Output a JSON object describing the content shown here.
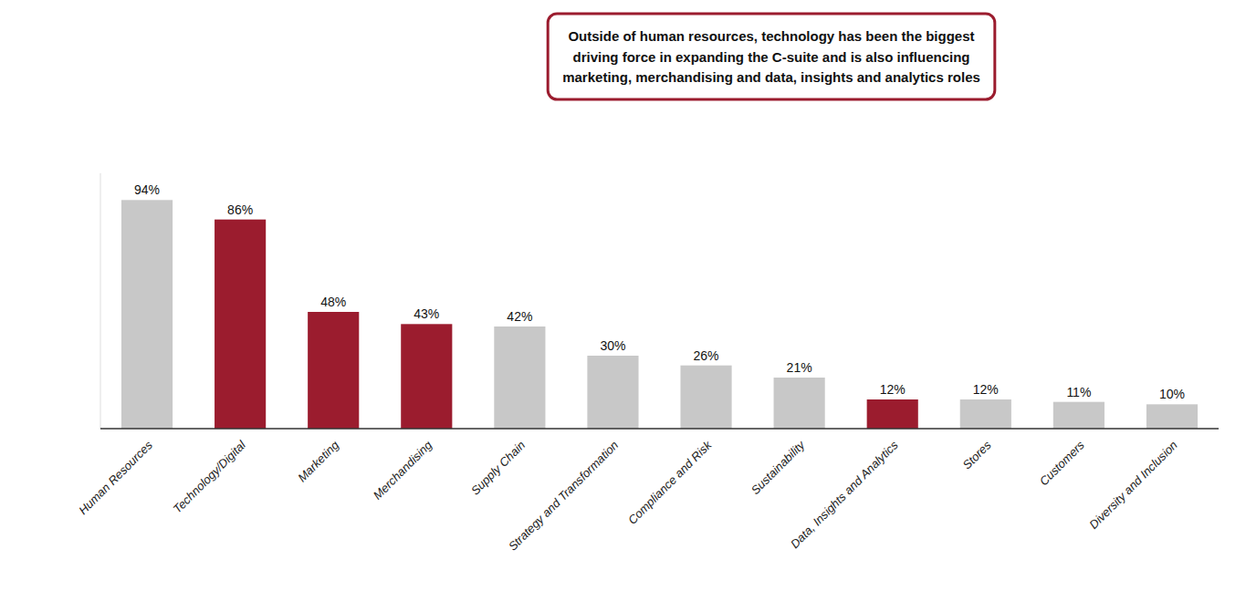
{
  "chart_data": {
    "type": "bar",
    "categories": [
      "Human Resources",
      "Technology/Digital",
      "Marketing",
      "Merchandising",
      "Supply Chain",
      "Strategy and Transformation",
      "Compliance and Risk",
      "Sustainability",
      "Data, Insights and Analytics",
      "Stores",
      "Customers",
      "Diversity and Inclusion"
    ],
    "values": [
      94,
      86,
      48,
      43,
      42,
      30,
      26,
      21,
      12,
      12,
      11,
      10
    ],
    "value_labels": [
      "94%",
      "86%",
      "48%",
      "43%",
      "42%",
      "30%",
      "26%",
      "21%",
      "12%",
      "12%",
      "11%",
      "10%"
    ],
    "colors": [
      "#c8c8c8",
      "#9b1c2e",
      "#9b1c2e",
      "#9b1c2e",
      "#c8c8c8",
      "#c8c8c8",
      "#c8c8c8",
      "#c8c8c8",
      "#9b1c2e",
      "#c8c8c8",
      "#c8c8c8",
      "#c8c8c8"
    ],
    "annotation": "Outside of human resources, technology has been the biggest\ndriving force in expanding the C-suite and is also influencing\nmarketing, merchandising and data, insights and analytics roles",
    "ylim": [
      0,
      105
    ],
    "grid": false,
    "data_labels": true,
    "tick_labels": "x"
  }
}
